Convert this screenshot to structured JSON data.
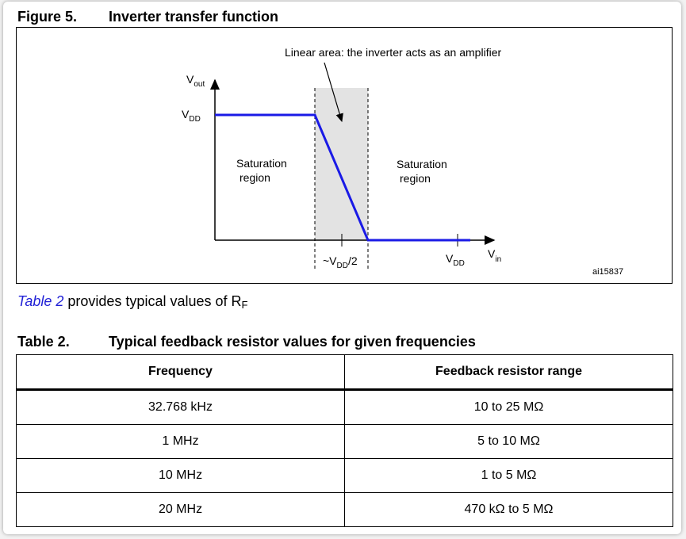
{
  "figure": {
    "label": "Figure 5.",
    "title": "Inverter transfer function",
    "annotation": "Linear area: the inverter acts as an amplifier",
    "y_axis": {
      "main": "V",
      "sub": "out"
    },
    "vdd_level": {
      "main": "V",
      "sub": "DD"
    },
    "left_region": [
      "Saturation",
      "region"
    ],
    "right_region": [
      "Saturation",
      "region"
    ],
    "half_tick": {
      "prefix": "~V",
      "sub": "DD",
      "suffix": "/2"
    },
    "vdd_tick": {
      "main": "V",
      "sub": "DD"
    },
    "x_axis": {
      "main": "V",
      "sub": "in"
    },
    "id": "ai15837"
  },
  "paragraph": {
    "link": "Table 2",
    "text": " provides typical values of R",
    "sub": "F"
  },
  "table": {
    "label": "Table 2.",
    "title": "Typical feedback resistor values for given frequencies",
    "header": [
      "Frequency",
      "Feedback resistor range"
    ],
    "rows": [
      [
        "32.768 kHz",
        "10 to 25 MΩ"
      ],
      [
        "1 MHz",
        "5 to 10 MΩ"
      ],
      [
        "10 MHz",
        "1 to 5 MΩ"
      ],
      [
        "20 MHz",
        "470 kΩ to 5 MΩ"
      ]
    ]
  }
}
